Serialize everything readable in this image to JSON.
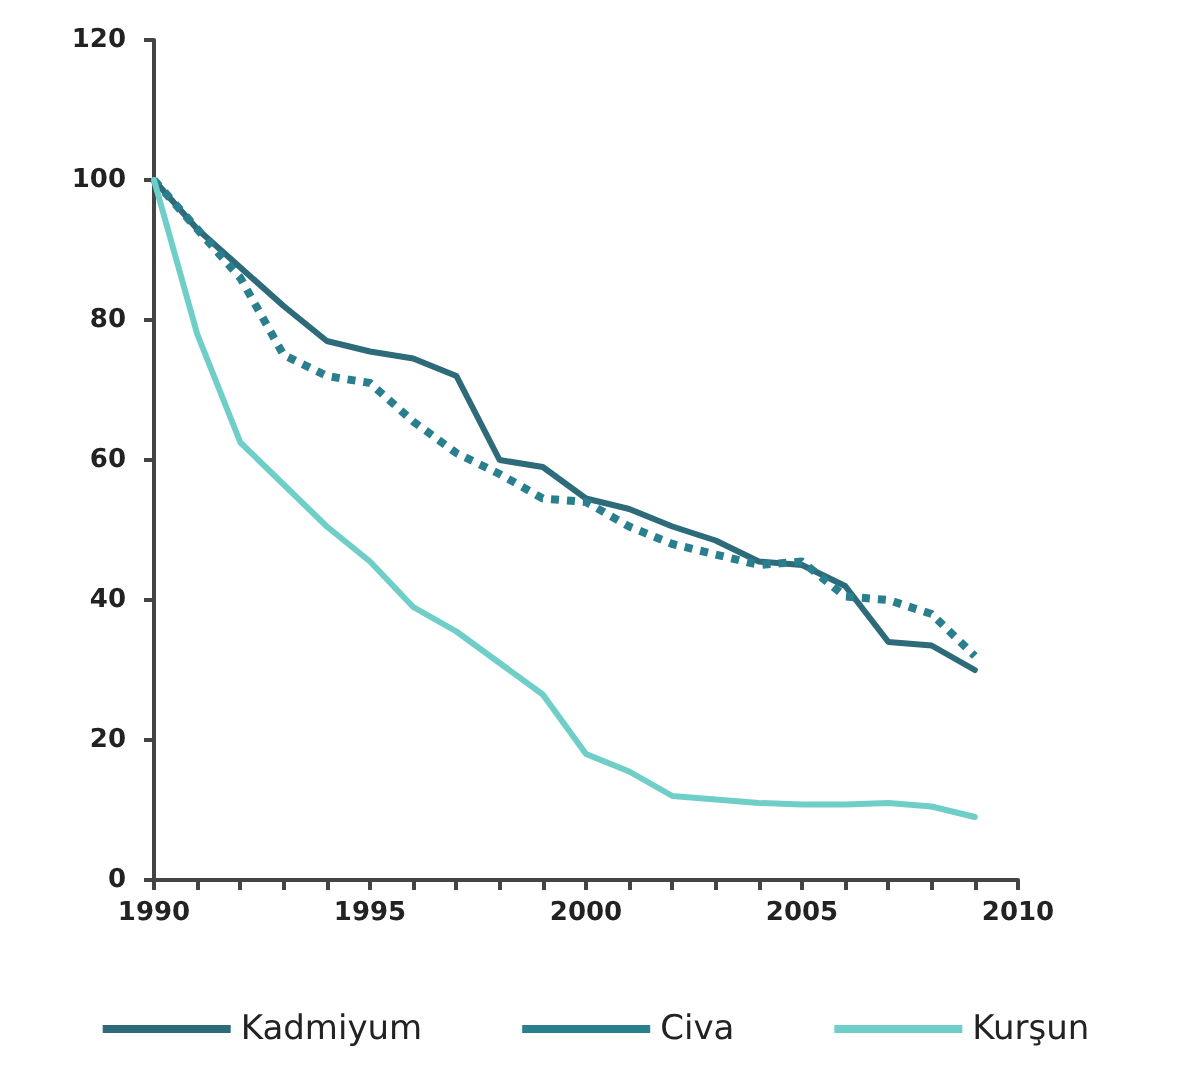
{
  "chart_data": {
    "type": "line",
    "x": [
      1990,
      1991,
      1992,
      1993,
      1994,
      1995,
      1996,
      1997,
      1998,
      1999,
      2000,
      2001,
      2002,
      2003,
      2004,
      2005,
      2006,
      2007,
      2008,
      2009
    ],
    "xlim": [
      1990,
      2010
    ],
    "xticks": [
      1990,
      {
        "value": 1991,
        "label": null
      },
      {
        "value": 1992,
        "label": null
      },
      {
        "value": 1993,
        "label": null
      },
      {
        "value": 1994,
        "label": null
      },
      1995,
      {
        "value": 1996,
        "label": null
      },
      {
        "value": 1997,
        "label": null
      },
      {
        "value": 1998,
        "label": null
      },
      {
        "value": 1999,
        "label": null
      },
      2000,
      {
        "value": 2001,
        "label": null
      },
      {
        "value": 2002,
        "label": null
      },
      {
        "value": 2003,
        "label": null
      },
      {
        "value": 2004,
        "label": null
      },
      2005,
      {
        "value": 2006,
        "label": null
      },
      {
        "value": 2007,
        "label": null
      },
      {
        "value": 2008,
        "label": null
      },
      {
        "value": 2009,
        "label": null
      },
      2010
    ],
    "ylim": [
      0,
      120
    ],
    "yticks": [
      0,
      20,
      40,
      60,
      80,
      100,
      120
    ],
    "grid": false,
    "legend": "bottom",
    "marker": "none",
    "series": [
      {
        "name": "Kadmiyum",
        "color": "#2e6b7a",
        "line_style": "solid",
        "values": [
          100,
          93,
          87.5,
          82,
          77,
          75.5,
          74.5,
          72,
          60,
          59,
          54.5,
          53,
          50.5,
          48.5,
          45.5,
          45,
          42,
          34,
          33.5,
          30
        ]
      },
      {
        "name": "Civa",
        "color": "#2a7f8f",
        "line_style": "dotted",
        "values": [
          100,
          93,
          86,
          75,
          72,
          71,
          65.5,
          61,
          58,
          54.5,
          54,
          50.5,
          48,
          46.5,
          45,
          45.5,
          40.5,
          40,
          38,
          32
        ]
      },
      {
        "name": "Kurşun",
        "color": "#6fcfc8",
        "line_style": "solid",
        "values": [
          100,
          78,
          62.5,
          56.5,
          50.5,
          45.5,
          39,
          35.5,
          31,
          26.5,
          18,
          15.5,
          12,
          11.5,
          11,
          10.8,
          10.8,
          11,
          10.5,
          9
        ]
      }
    ]
  }
}
